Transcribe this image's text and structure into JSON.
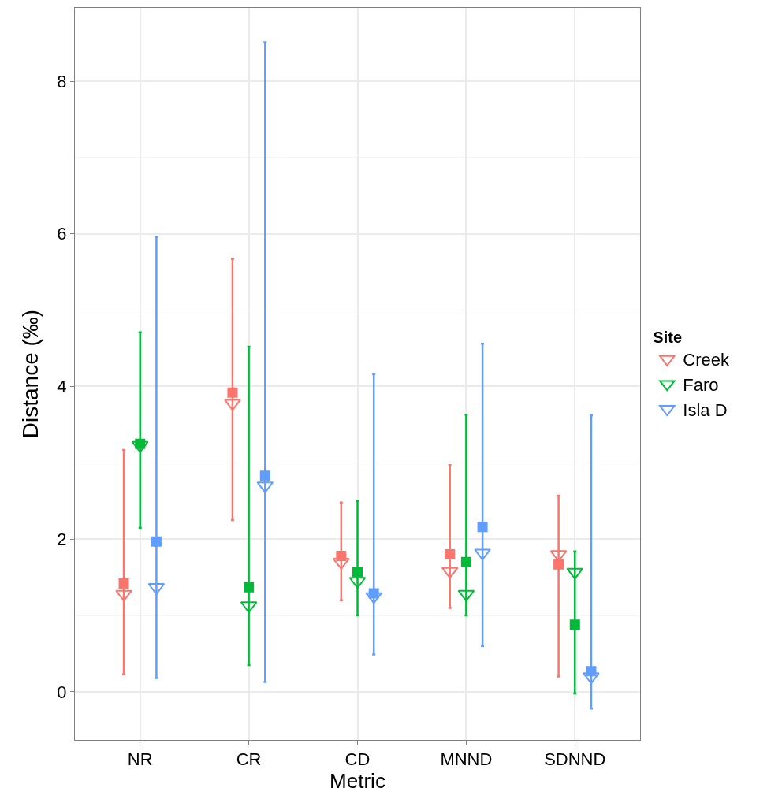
{
  "chart_data": {
    "type": "scatter",
    "xlabel": "Metric",
    "ylabel": "Distance (‰)",
    "legend_title": "Site",
    "categories": [
      "NR",
      "CR",
      "CD",
      "MNND",
      "SDNND"
    ],
    "series": [
      {
        "name": "Creek",
        "color": "#f8766d",
        "marker": "triangle",
        "values": [
          1.28,
          3.78,
          1.7,
          1.58,
          1.8
        ],
        "errors": [
          [
            0.23,
            3.17
          ],
          [
            2.25,
            5.67
          ],
          [
            1.2,
            2.48
          ],
          [
            1.1,
            2.97
          ],
          [
            0.2,
            2.57
          ]
        ]
      },
      {
        "name": "Faro",
        "color": "#00ba38",
        "marker": "triangle",
        "values": [
          3.23,
          1.13,
          1.45,
          1.28,
          1.57
        ],
        "errors": [
          [
            2.15,
            4.71
          ],
          [
            0.35,
            4.52
          ],
          [
            1.0,
            2.5
          ],
          [
            1.0,
            3.63
          ],
          [
            -0.02,
            1.84
          ]
        ]
      },
      {
        "name": "Isla D",
        "color": "#619cff",
        "marker": "triangle",
        "values": [
          1.37,
          2.7,
          1.25,
          1.82,
          0.2
        ],
        "errors": [
          [
            0.18,
            5.96
          ],
          [
            0.13,
            8.51
          ],
          [
            0.49,
            4.16
          ],
          [
            0.6,
            4.56
          ],
          [
            -0.22,
            3.62
          ]
        ]
      },
      {
        "color": "#f8766d",
        "marker": "square",
        "values": [
          1.42,
          3.92,
          1.78,
          1.8,
          1.67
        ]
      },
      {
        "color": "#00ba38",
        "marker": "square",
        "values": [
          3.25,
          1.37,
          1.57,
          1.7,
          0.88
        ]
      },
      {
        "color": "#619cff",
        "marker": "square",
        "values": [
          1.97,
          2.83,
          1.29,
          2.16,
          0.27
        ]
      }
    ],
    "ylim": [
      -0.63,
      8.96
    ],
    "yticks": [
      0,
      2,
      4,
      6,
      8
    ],
    "grid": true,
    "legend": "right"
  }
}
